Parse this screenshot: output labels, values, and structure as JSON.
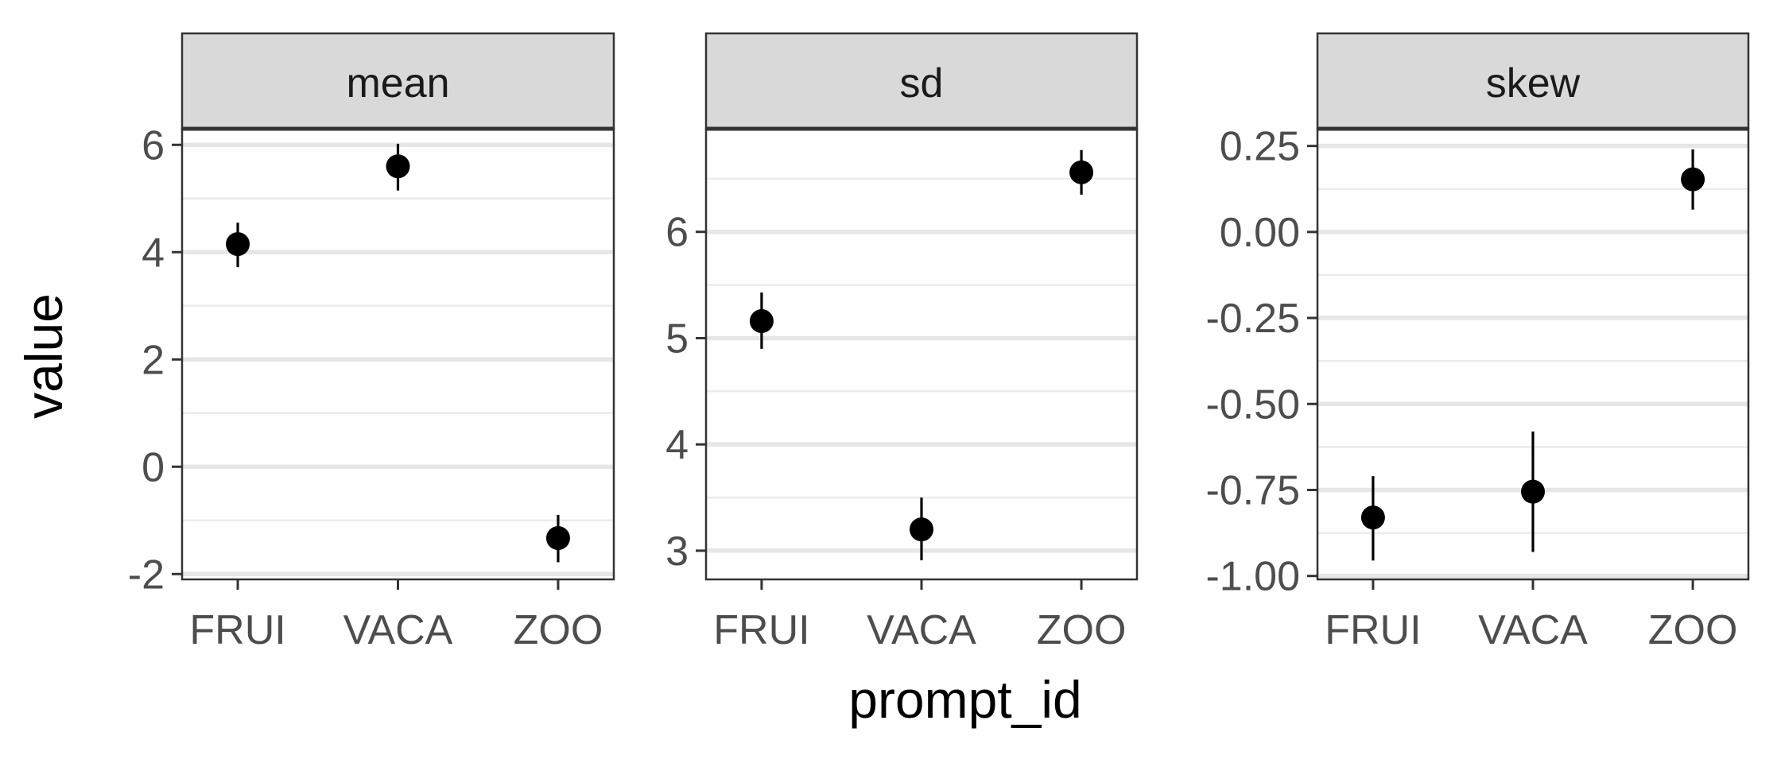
{
  "chart_data": {
    "type": "scatter",
    "facet_type": "pointrange",
    "xlabel": "prompt_id",
    "ylabel": "value",
    "categories": [
      "FRUI",
      "VACA",
      "ZOO"
    ],
    "grid": true,
    "panels": [
      {
        "label": "mean",
        "ylim": [
          -2.1,
          6.3
        ],
        "yticks": [
          -2,
          0,
          2,
          4,
          6
        ],
        "ytick_labels": [
          "-2",
          "0",
          "2",
          "4",
          "6"
        ],
        "minor_gridlines": [
          -1,
          1,
          3,
          5
        ],
        "points": [
          {
            "category": "FRUI",
            "value": 4.15,
            "low": 3.72,
            "high": 4.55
          },
          {
            "category": "VACA",
            "value": 5.6,
            "low": 5.15,
            "high": 6.02
          },
          {
            "category": "ZOO",
            "value": -1.33,
            "low": -1.78,
            "high": -0.9
          }
        ]
      },
      {
        "label": "sd",
        "ylim": [
          2.73,
          6.97
        ],
        "yticks": [
          3,
          4,
          5,
          6
        ],
        "ytick_labels": [
          "3",
          "4",
          "5",
          "6"
        ],
        "minor_gridlines": [
          3.5,
          4.5,
          5.5,
          6.5
        ],
        "points": [
          {
            "category": "FRUI",
            "value": 5.16,
            "low": 4.9,
            "high": 5.43
          },
          {
            "category": "VACA",
            "value": 3.2,
            "low": 2.91,
            "high": 3.5
          },
          {
            "category": "ZOO",
            "value": 6.56,
            "low": 6.35,
            "high": 6.77
          }
        ]
      },
      {
        "label": "skew",
        "ylim": [
          -1.01,
          0.3
        ],
        "yticks": [
          -1.0,
          -0.75,
          -0.5,
          -0.25,
          0.0,
          0.25
        ],
        "ytick_labels": [
          "-1.00",
          "-0.75",
          "-0.50",
          "-0.25",
          "0.00",
          "0.25"
        ],
        "minor_gridlines": [
          -0.875,
          -0.625,
          -0.375,
          -0.125,
          0.125
        ],
        "points": [
          {
            "category": "FRUI",
            "value": -0.83,
            "low": -0.955,
            "high": -0.71
          },
          {
            "category": "VACA",
            "value": -0.755,
            "low": -0.93,
            "high": -0.58
          },
          {
            "category": "ZOO",
            "value": 0.153,
            "low": 0.065,
            "high": 0.24
          }
        ]
      }
    ]
  }
}
